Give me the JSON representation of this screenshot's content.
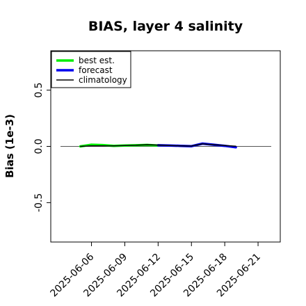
{
  "chart_data": {
    "type": "line",
    "title": "BIAS, layer 4 salinity",
    "xlabel": "",
    "ylabel": "Bias (1e-3)",
    "xlim": [
      "2025-06-02T08:00",
      "2025-06-23T00:00"
    ],
    "ylim": [
      -0.85,
      0.85
    ],
    "yticks": [
      -0.5,
      0.0,
      0.5
    ],
    "ytick_labels": [
      "-0.5",
      "0.0",
      "0.5"
    ],
    "xticks": [
      "2025-06-06",
      "2025-06-09",
      "2025-06-12",
      "2025-06-15",
      "2025-06-18",
      "2025-06-21"
    ],
    "highlight_xtick": "2025-06-12",
    "highlight_color": "#228b22",
    "reference_line_y": 0.0,
    "grid": false,
    "legend_position": "top-left",
    "series": [
      {
        "name": "best est.",
        "color": "#00ee00",
        "x": [
          "2025-06-05",
          "2025-06-06",
          "2025-06-07",
          "2025-06-08",
          "2025-06-09",
          "2025-06-10",
          "2025-06-11",
          "2025-06-12"
        ],
        "y": [
          0.0,
          0.015,
          0.012,
          0.005,
          0.008,
          0.01,
          0.013,
          0.008
        ]
      },
      {
        "name": "forecast",
        "color": "#0000ee",
        "x": [
          "2025-06-12",
          "2025-06-13",
          "2025-06-14",
          "2025-06-15",
          "2025-06-16",
          "2025-06-17",
          "2025-06-18",
          "2025-06-19"
        ],
        "y": [
          0.01,
          0.008,
          0.005,
          0.002,
          0.025,
          0.015,
          0.005,
          -0.008
        ]
      },
      {
        "name": "climatology",
        "color": "#000000",
        "x": [
          "2025-06-05",
          "2025-06-06",
          "2025-06-07",
          "2025-06-08",
          "2025-06-09",
          "2025-06-10",
          "2025-06-11",
          "2025-06-12",
          "2025-06-13",
          "2025-06-14",
          "2025-06-15",
          "2025-06-16",
          "2025-06-17",
          "2025-06-18",
          "2025-06-19"
        ],
        "y": [
          0.0,
          0.005,
          0.005,
          0.005,
          0.008,
          0.01,
          0.015,
          0.012,
          0.008,
          0.005,
          0.003,
          0.022,
          0.015,
          0.008,
          0.002
        ]
      }
    ]
  }
}
